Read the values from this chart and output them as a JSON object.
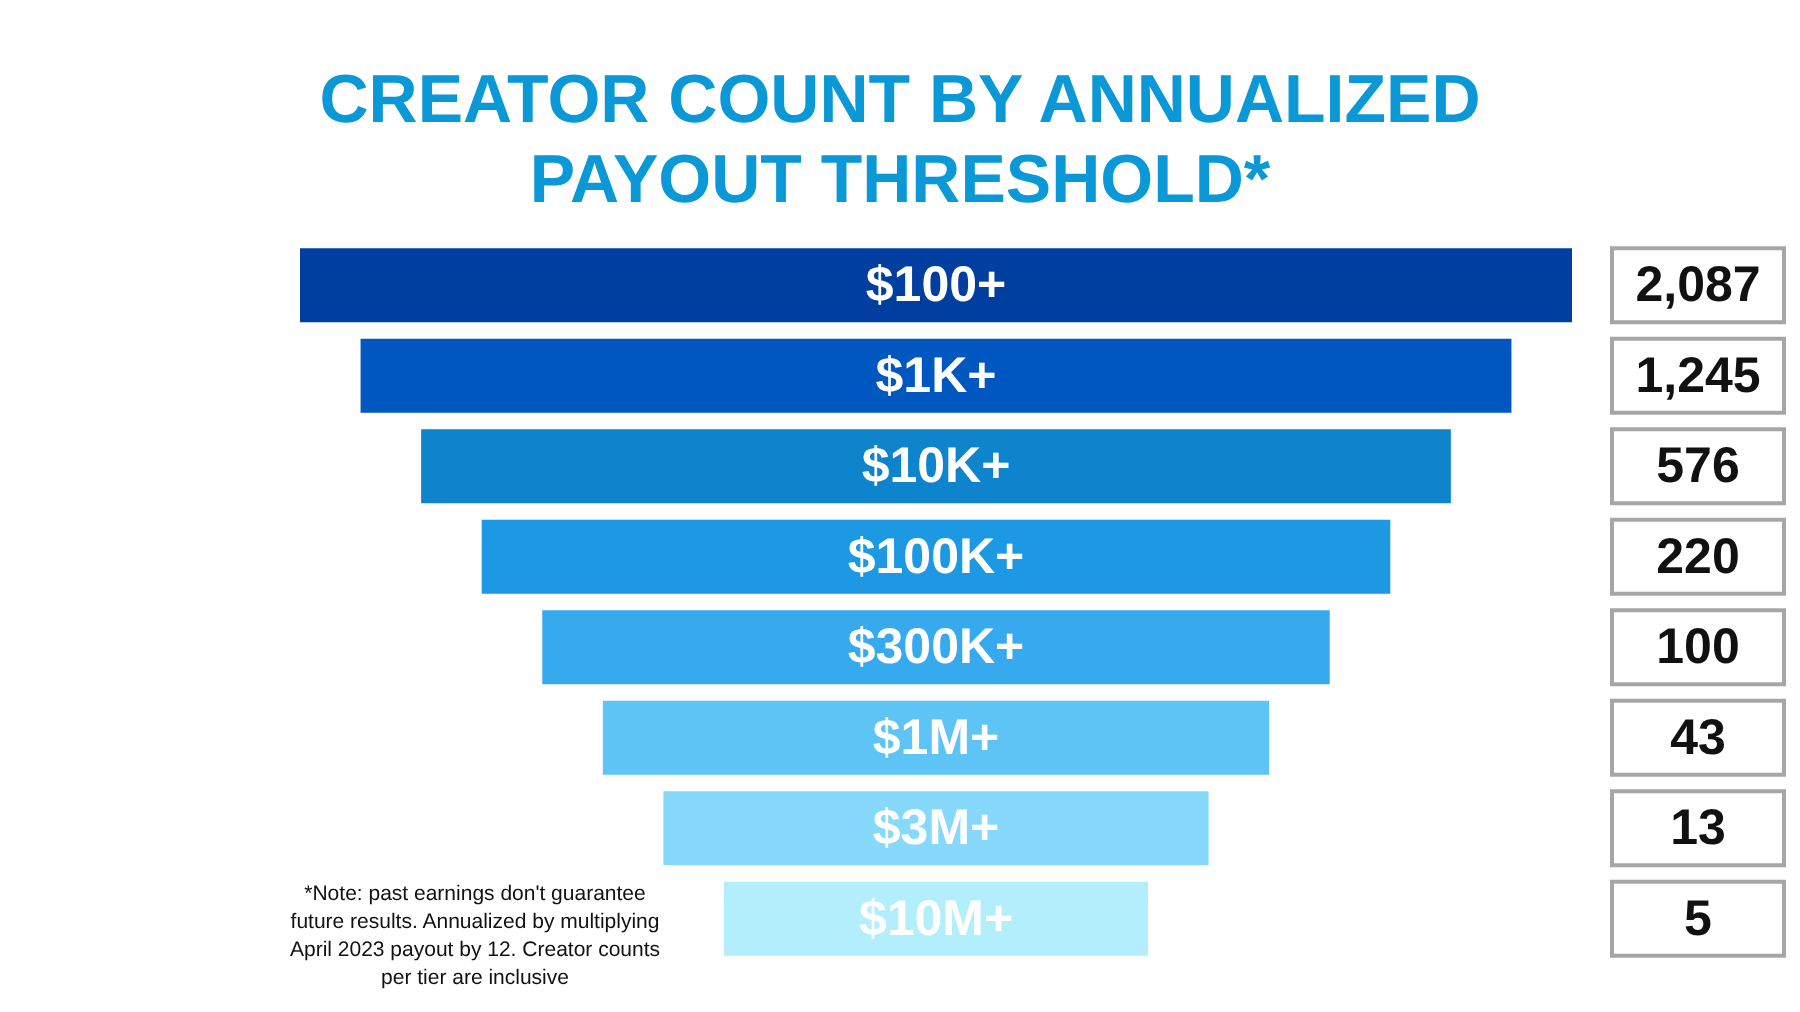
{
  "chart_data": {
    "type": "other",
    "title": "CREATOR COUNT BY ANNUALIZED PAYOUT THRESHOLD*",
    "categories": [
      "$100+",
      "$1K+",
      "$10K+",
      "$100K+",
      "$300K+",
      "$1M+",
      "$3M+",
      "$10M+"
    ],
    "values": [
      2087,
      1245,
      576,
      220,
      100,
      43,
      13,
      5
    ],
    "value_labels": [
      "2,087",
      "1,245",
      "576",
      "220",
      "100",
      "43",
      "13",
      "5"
    ],
    "data_labels": true,
    "colors": [
      "#003f9f",
      "#0057bf",
      "#0d84cb",
      "#1c99e2",
      "#36a9ef",
      "#5ec3f5",
      "#86d9fa",
      "#b3eefd"
    ],
    "annotations": [
      "*Note: past earnings don't guarantee future results. Annualized by multiplying April 2023 payout by 12. Creator counts per tier are inclusive"
    ]
  }
}
